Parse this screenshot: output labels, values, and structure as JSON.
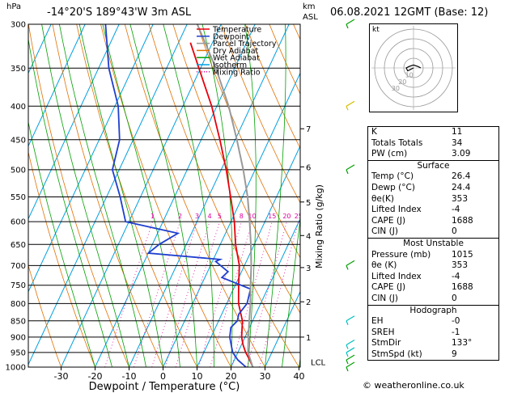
{
  "header": {
    "location": "-14°20'S  189°43'W  3m  ASL",
    "hpa_label": "hPa",
    "km_label": "km",
    "asl_label": "ASL",
    "datetime": "06.08.2021  12GMT  (Base: 12)"
  },
  "legend": {
    "items": [
      {
        "label": "Temperature",
        "color": "#e8000b"
      },
      {
        "label": "Dewpoint",
        "color": "#1f3fcf"
      },
      {
        "label": "Parcel Trajectory",
        "color": "#999999"
      },
      {
        "label": "Dry Adiabat",
        "color": "#e07000"
      },
      {
        "label": "Wet Adiabat",
        "color": "#00a000"
      },
      {
        "label": "Isotherm",
        "color": "#00a0e0"
      },
      {
        "label": "Mixing Ratio",
        "color": "#e000a0"
      }
    ]
  },
  "chart_data": {
    "type": "line",
    "chart": "skew-T log-P diagram",
    "xlabel": "Dewpoint / Temperature (°C)",
    "xticks": [
      -30,
      -20,
      -10,
      0,
      10,
      20,
      30,
      40
    ],
    "pressure_levels": [
      300,
      350,
      400,
      450,
      500,
      550,
      600,
      650,
      700,
      750,
      800,
      850,
      900,
      950,
      1000
    ],
    "height_km": {
      "ticks": [
        "1",
        "2",
        "3",
        "4",
        "5",
        "6",
        "7"
      ],
      "p": [
        900,
        795,
        705,
        630,
        560,
        495,
        433
      ],
      "lcl_label": "LCL",
      "lcl_p": 985
    },
    "mixing_ratio_label": "Mixing Ratio (g/kg)",
    "mixing_ratios": [
      "1",
      "2",
      "3",
      "4",
      "5",
      "8",
      "10",
      "15",
      "20",
      "25"
    ],
    "series": [
      {
        "name": "Temperature",
        "color": "#e8000b",
        "p": [
          1000,
          975,
          950,
          925,
          900,
          850,
          800,
          750,
          700,
          650,
          600,
          550,
          500,
          450,
          400,
          350,
          320
        ],
        "t": [
          26.4,
          24.5,
          22.3,
          20.5,
          19.0,
          17.0,
          13.5,
          11.0,
          8.5,
          4.5,
          1.0,
          -3.5,
          -8.5,
          -14.5,
          -21.5,
          -30.5,
          -36.5
        ]
      },
      {
        "name": "Dewpoint",
        "color": "#1f3fcf",
        "p": [
          1000,
          975,
          950,
          925,
          900,
          870,
          850,
          830,
          800,
          760,
          730,
          715,
          705,
          690,
          685,
          670,
          650,
          625,
          600,
          550,
          500,
          450,
          400,
          350,
          300
        ],
        "t": [
          24.4,
          21.0,
          18.5,
          17.0,
          15.5,
          14.5,
          15.5,
          15.0,
          16.0,
          15.0,
          5.0,
          6.0,
          4.0,
          1.0,
          2.0,
          -20.0,
          -18.0,
          -14.0,
          -31.0,
          -36.0,
          -42.0,
          -44.0,
          -49.0,
          -57.0,
          -64.0
        ]
      },
      {
        "name": "Parcel Trajectory",
        "color": "#999999",
        "p": [
          1000,
          950,
          900,
          850,
          800,
          750,
          700,
          650,
          600,
          550,
          500,
          450,
          400,
          350,
          300
        ],
        "t": [
          26.4,
          23.0,
          21.0,
          19.0,
          17.0,
          14.5,
          12.0,
          9.0,
          5.5,
          1.5,
          -3.5,
          -9.5,
          -16.5,
          -25.5,
          -37.0
        ]
      }
    ],
    "wind_barbs": [
      {
        "p": 1000,
        "color": "#00a000"
      },
      {
        "p": 975,
        "color": "#00a000"
      },
      {
        "p": 950,
        "color": "#00c0c0"
      },
      {
        "p": 925,
        "color": "#00c0c0"
      },
      {
        "p": 850,
        "color": "#00c0c0"
      },
      {
        "p": 700,
        "color": "#00a000"
      },
      {
        "p": 500,
        "color": "#00a000"
      },
      {
        "p": 400,
        "color": "#d4c000"
      },
      {
        "p": 300,
        "color": "#00a000"
      }
    ]
  },
  "hodograph": {
    "unit_label": "kt",
    "ring_labels": [
      "10",
      "20",
      "30"
    ],
    "points": [
      [
        0,
        0
      ],
      [
        -2,
        -1
      ],
      [
        -4,
        -2
      ],
      [
        -5,
        0
      ],
      [
        -3,
        1
      ],
      [
        0,
        2
      ],
      [
        3,
        1
      ],
      [
        5,
        0
      ]
    ]
  },
  "indices": {
    "rows": [
      {
        "k": "K",
        "v": "11"
      },
      {
        "k": "Totals Totals",
        "v": "34"
      },
      {
        "k": "PW (cm)",
        "v": "3.09"
      }
    ]
  },
  "surface": {
    "title": "Surface",
    "rows": [
      {
        "k": "Temp (°C)",
        "v": "26.4"
      },
      {
        "k": "Dewp (°C)",
        "v": "24.4"
      },
      {
        "k": "θe(K)",
        "v": "353"
      },
      {
        "k": "Lifted Index",
        "v": "-4"
      },
      {
        "k": "CAPE (J)",
        "v": "1688"
      },
      {
        "k": "CIN (J)",
        "v": "0"
      }
    ]
  },
  "most_unstable": {
    "title": "Most Unstable",
    "rows": [
      {
        "k": "Pressure (mb)",
        "v": "1015"
      },
      {
        "k": "θe (K)",
        "v": "353"
      },
      {
        "k": "Lifted Index",
        "v": "-4"
      },
      {
        "k": "CAPE (J)",
        "v": "1688"
      },
      {
        "k": "CIN (J)",
        "v": "0"
      }
    ]
  },
  "hodograph_table": {
    "title": "Hodograph",
    "rows": [
      {
        "k": "EH",
        "v": "-0"
      },
      {
        "k": "SREH",
        "v": "-1"
      },
      {
        "k": "StmDir",
        "v": "133°"
      },
      {
        "k": "StmSpd (kt)",
        "v": "9"
      }
    ]
  },
  "credit": "© weatheronline.co.uk"
}
